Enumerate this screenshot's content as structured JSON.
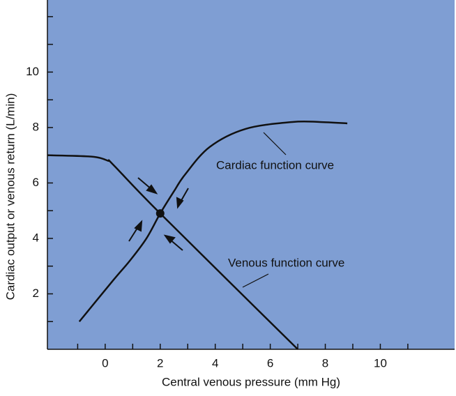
{
  "chart_data": {
    "type": "line",
    "x_label": "Central venous pressure (mm Hg)",
    "y_label": "Cardiac output or venous return (L/min)",
    "series": [
      {
        "name": "Cardiac function curve",
        "color": "#111111",
        "x": [
          -0.94,
          0.3,
          0.9,
          1.5,
          2,
          2.5,
          2.9,
          3.8,
          5.1,
          6.8,
          7.8,
          8.8
        ],
        "values": [
          1.0,
          2.5,
          3.2,
          4.0,
          4.9,
          5.7,
          6.3,
          7.3,
          7.95,
          8.2,
          8.2,
          8.15
        ]
      },
      {
        "name": "Venous function curve",
        "color": "#111111",
        "x": [
          -2.1,
          -0.5,
          0.1,
          0.3,
          2,
          7
        ],
        "values": [
          7.0,
          6.95,
          6.8,
          6.65,
          4.9,
          0
        ]
      }
    ],
    "points": [
      {
        "x": 2,
        "y": 4.9,
        "color": "#111111"
      }
    ],
    "xlim": [
      -2.1,
      12.7
    ],
    "ylim": [
      0,
      12.6
    ],
    "xticks": [
      0,
      2,
      4,
      6,
      8,
      10
    ],
    "yticks": [
      2,
      4,
      6,
      8,
      10
    ],
    "x_minor_ticks": [
      -1,
      1,
      3,
      5,
      7,
      9,
      11
    ],
    "y_minor_ticks": [
      1,
      3,
      5,
      7,
      9,
      11,
      12
    ],
    "background": "#7f9ed3"
  }
}
